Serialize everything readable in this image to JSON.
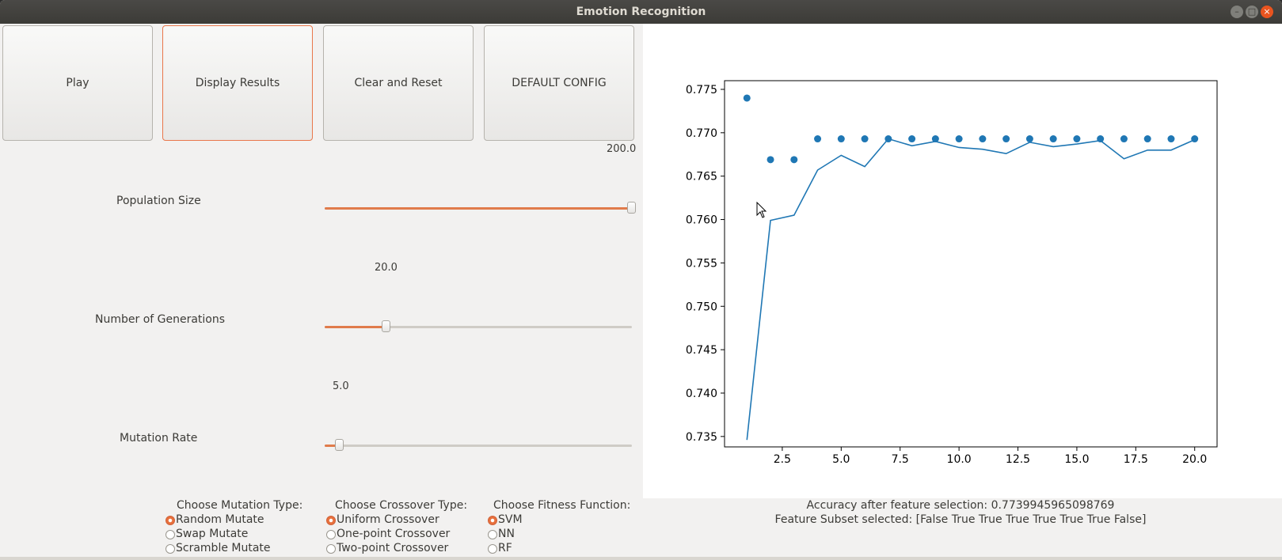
{
  "window": {
    "title": "Emotion Recognition"
  },
  "buttons": {
    "play": "Play",
    "display": "Display Results",
    "clear": "Clear and Reset",
    "default": "DEFAULT CONFIG"
  },
  "sliders": {
    "population": {
      "label": "Population Size",
      "value_text": "200.0",
      "fraction": 1.0
    },
    "generations": {
      "label": "Number of Generations",
      "value_text": "20.0",
      "fraction": 0.2
    },
    "mutation": {
      "label": "Mutation Rate",
      "value_text": "5.0",
      "fraction": 0.05
    }
  },
  "options": {
    "mutation": {
      "title": "Choose Mutation Type:",
      "items": [
        "Random Mutate",
        "Swap Mutate",
        "Scramble Mutate"
      ],
      "selected": 0
    },
    "crossover": {
      "title": "Choose Crossover Type:",
      "items": [
        "Uniform Crossover",
        "One-point Crossover",
        "Two-point Crossover"
      ],
      "selected": 0
    },
    "fitness": {
      "title": "Choose Fitness Function:",
      "items": [
        "SVM",
        "NN",
        "RF"
      ],
      "selected": 0
    }
  },
  "results": {
    "accuracy": "Accuracy after feature selection: 0.7739945965098769",
    "subset": "Feature Subset selected: [False  True  True  True  True  True  True False]"
  },
  "chart_data": {
    "type": "line",
    "xlim": [
      0.05,
      20.95
    ],
    "ylim": [
      0.7338,
      0.776
    ],
    "x_ticks": [
      2.5,
      5.0,
      7.5,
      10.0,
      12.5,
      15.0,
      17.5,
      20.0
    ],
    "x_tick_labels": [
      "2.5",
      "5.0",
      "7.5",
      "10.0",
      "12.5",
      "15.0",
      "17.5",
      "20.0"
    ],
    "y_ticks": [
      0.735,
      0.74,
      0.745,
      0.75,
      0.755,
      0.76,
      0.765,
      0.77,
      0.775
    ],
    "y_tick_labels": [
      "0.735",
      "0.740",
      "0.745",
      "0.750",
      "0.755",
      "0.760",
      "0.765",
      "0.770",
      "0.775"
    ],
    "grid": false,
    "color": "#1f77b4",
    "series": [
      {
        "kind": "line",
        "x": [
          1,
          2,
          3,
          4,
          5,
          6,
          7,
          8,
          9,
          10,
          11,
          12,
          13,
          14,
          15,
          16,
          17,
          18,
          19,
          20
        ],
        "y": [
          0.7346,
          0.7599,
          0.7605,
          0.7657,
          0.7674,
          0.7661,
          0.7693,
          0.7685,
          0.769,
          0.7683,
          0.7681,
          0.7676,
          0.7689,
          0.7684,
          0.7687,
          0.7691,
          0.767,
          0.768,
          0.768,
          0.7692
        ]
      },
      {
        "kind": "scatter",
        "x": [
          1,
          2,
          3,
          4,
          5,
          6,
          7,
          8,
          9,
          10,
          11,
          12,
          13,
          14,
          15,
          16,
          17,
          18,
          19,
          20
        ],
        "y": [
          0.774,
          0.7669,
          0.7669,
          0.7693,
          0.7693,
          0.7693,
          0.7693,
          0.7693,
          0.7693,
          0.7693,
          0.7693,
          0.7693,
          0.7693,
          0.7693,
          0.7693,
          0.7693,
          0.7693,
          0.7693,
          0.7693,
          0.7693
        ]
      }
    ]
  }
}
